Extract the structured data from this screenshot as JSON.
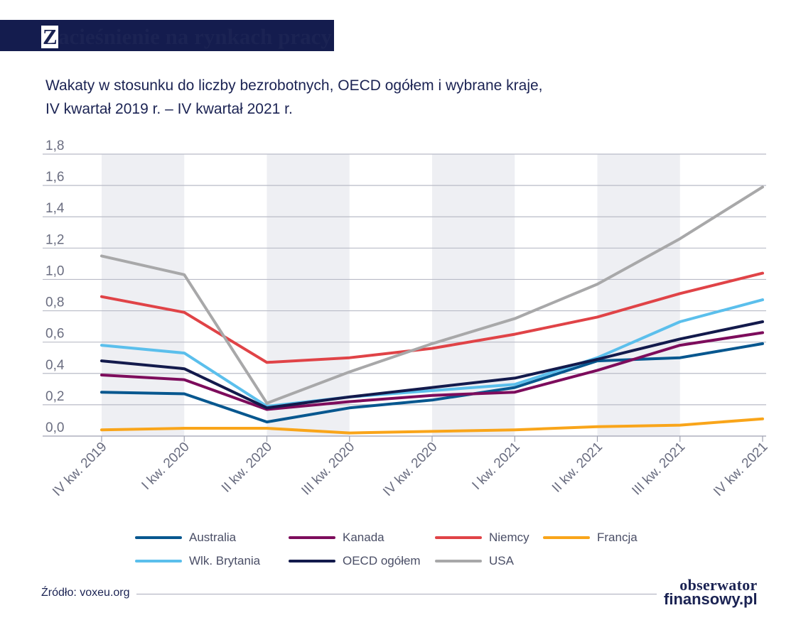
{
  "title": {
    "first_letter": "Z",
    "rest": "acieśnienie na rynkach pracy"
  },
  "subtitle": {
    "line1": "Wakaty w stosunku do liczby bezrobotnych, OECD ogółem i wybrane kraje,",
    "line2": "IV kwartał 2019 r. – IV kwartał 2021 r."
  },
  "source": "Źródło: voxeu.org",
  "logo": {
    "line1": "obserwator",
    "line2": "finansowy.pl"
  },
  "colors": {
    "axis_text": "#6a6d80",
    "gridline": "#b9bbc7",
    "band": "#eeeff3"
  },
  "chart_data": {
    "type": "line",
    "title": "Wakaty w stosunku do liczby bezrobotnych, OECD ogółem i wybrane kraje, IV kwartał 2019 r. – IV kwartał 2021 r.",
    "categories": [
      "IV kw. 2019",
      "I kw. 2020",
      "II kw. 2020",
      "III kw. 2020",
      "IV kw. 2020",
      "I kw. 2021",
      "II kw. 2021",
      "III kw. 2021",
      "IV kw. 2021"
    ],
    "y_ticks": [
      "0,0",
      "0,2",
      "0,4",
      "0,6",
      "0,8",
      "1,0",
      "1,2",
      "1,4",
      "1,6",
      "1,8"
    ],
    "ylim": [
      0,
      1.8
    ],
    "grid": true,
    "shaded_bands": [
      "IV kw. 2019",
      "II kw. 2020",
      "IV kw. 2020",
      "II kw. 2021"
    ],
    "legend_placement": "bottom",
    "series": [
      {
        "name": "Australia",
        "color": "#07578f",
        "values": [
          0.28,
          0.27,
          0.09,
          0.18,
          0.23,
          0.31,
          0.48,
          0.5,
          0.59
        ]
      },
      {
        "name": "Kanada",
        "color": "#7d0c5c",
        "values": [
          0.39,
          0.36,
          0.17,
          0.22,
          0.26,
          0.28,
          0.42,
          0.58,
          0.66
        ]
      },
      {
        "name": "Niemcy",
        "color": "#e04347",
        "values": [
          0.89,
          0.79,
          0.47,
          0.5,
          0.56,
          0.65,
          0.76,
          0.91,
          1.04
        ]
      },
      {
        "name": "Francja",
        "color": "#f9a51a",
        "values": [
          0.04,
          0.05,
          0.05,
          0.02,
          0.03,
          0.04,
          0.06,
          0.07,
          0.11
        ]
      },
      {
        "name": "Wlk. Brytania",
        "color": "#5bbfec",
        "values": [
          0.58,
          0.53,
          0.19,
          0.25,
          0.29,
          0.33,
          0.5,
          0.73,
          0.87
        ]
      },
      {
        "name": "OECD ogółem",
        "color": "#131a4c",
        "values": [
          0.48,
          0.43,
          0.18,
          0.25,
          0.31,
          0.37,
          0.49,
          0.62,
          0.73
        ]
      },
      {
        "name": "USA",
        "color": "#a8a8a9",
        "values": [
          1.15,
          1.03,
          0.21,
          0.41,
          0.59,
          0.75,
          0.97,
          1.26,
          1.59
        ]
      }
    ]
  }
}
